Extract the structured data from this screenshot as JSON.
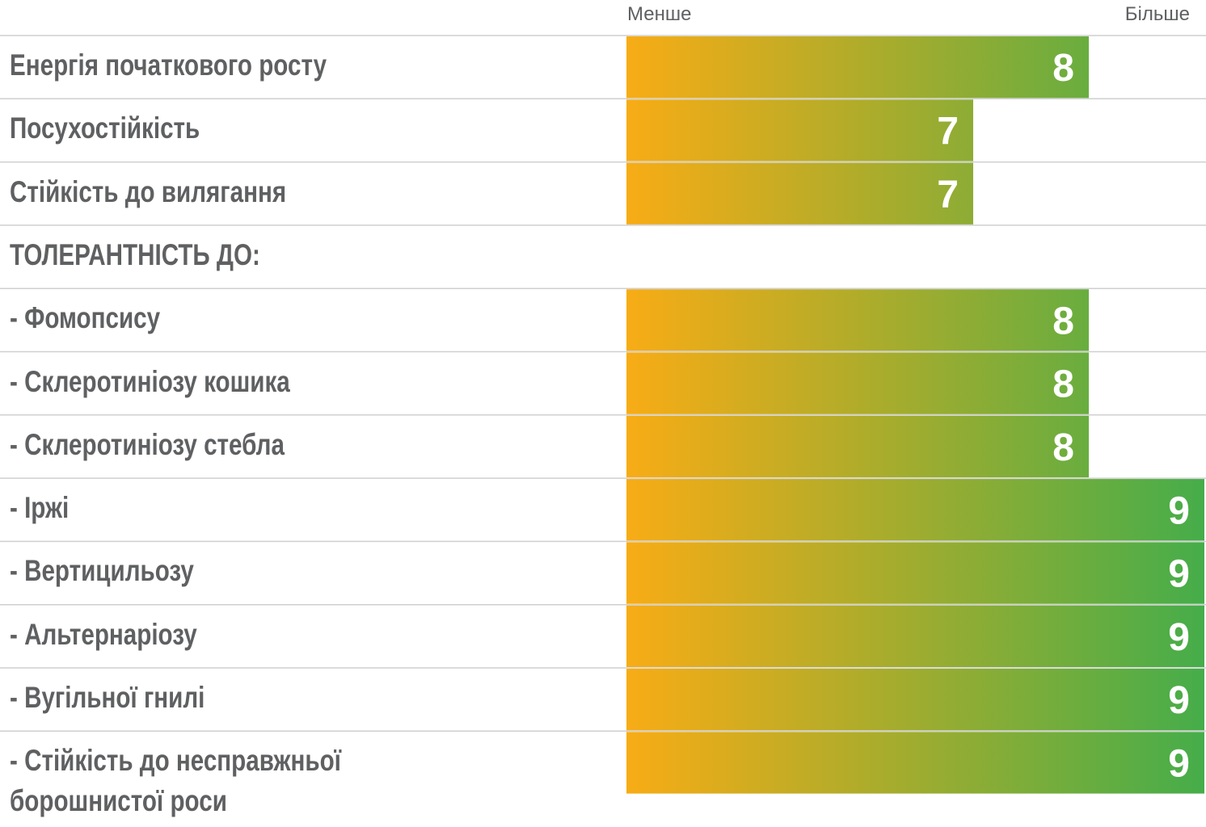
{
  "chart_data": {
    "type": "bar",
    "low_label": "Менше",
    "high_label": "Більше",
    "categories": [
      "Енергія початкового росту",
      "Посухостійкість",
      "Стійкість до вилягання",
      "ТОЛЕРАНТНІСТЬ ДО:",
      "- Фомопсису",
      "- Склеротиніозу кошика",
      "- Склеротиніозу стебла",
      "- Іржі",
      "- Вертицильозу",
      "- Альтернаріозу",
      "- Вугільної гнилі",
      "- Стійкість до несправжньої борошнистої роси"
    ],
    "values": [
      8,
      7,
      7,
      null,
      8,
      8,
      8,
      9,
      9,
      9,
      9,
      9
    ],
    "xlim": [
      4,
      9
    ],
    "gradient": [
      "#f8ac15",
      "#45ad4a"
    ]
  }
}
